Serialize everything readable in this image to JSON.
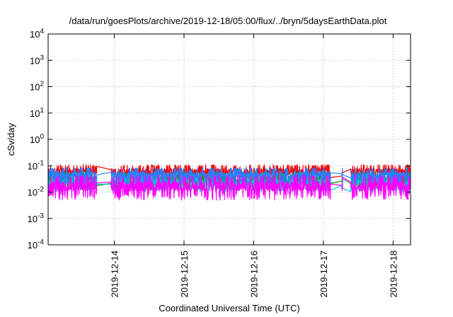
{
  "chart_data": {
    "type": "line",
    "title": "/data/run/goesPlots/archive/2019-12-18/05:00/flux/../bryn/5daysEarthData.plot",
    "xlabel": "Coordinated Universal Time (UTC)",
    "ylabel": "cSv/day",
    "yscale": "log",
    "ylim": [
      0.0001,
      10000
    ],
    "xlim": [
      "2019-12-13 01:12",
      "2019-12-18 06:00"
    ],
    "grid": true,
    "y_ticks": [
      {
        "mantissa": "10",
        "exp": "-4"
      },
      {
        "mantissa": "10",
        "exp": "-3"
      },
      {
        "mantissa": "10",
        "exp": "-2"
      },
      {
        "mantissa": "10",
        "exp": "-1"
      },
      {
        "mantissa": "10",
        "exp": "0"
      },
      {
        "mantissa": "10",
        "exp": "1"
      },
      {
        "mantissa": "10",
        "exp": "2"
      },
      {
        "mantissa": "10",
        "exp": "3"
      },
      {
        "mantissa": "10",
        "exp": "4"
      }
    ],
    "x_ticks": [
      "2019-12-14",
      "2019-12-15",
      "2019-12-16",
      "2019-12-17",
      "2019-12-18"
    ],
    "gaps": [
      [
        "2019-12-13 18:00",
        "2019-12-13 22:50"
      ],
      [
        "2019-12-17 02:30",
        "2019-12-17 06:20"
      ],
      [
        "2019-12-17 06:40",
        "2019-12-17 09:20"
      ]
    ],
    "series": [
      {
        "color": "#ff0000",
        "low": 0.03,
        "high": 0.11
      },
      {
        "color": "#00a000",
        "low": 0.012,
        "high": 0.06
      },
      {
        "color": "#00c8c8",
        "low": 0.01,
        "high": 0.05
      },
      {
        "color": "#2a7fff",
        "low": 0.02,
        "high": 0.085
      },
      {
        "color": "#ff00ff",
        "low": 0.005,
        "high": 0.045
      }
    ]
  }
}
